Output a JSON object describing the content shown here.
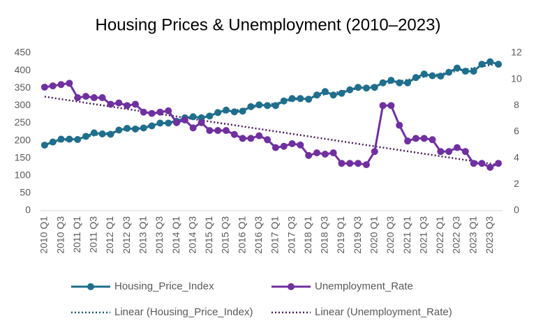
{
  "chart_data": {
    "type": "line",
    "title": "Housing Prices & Unemployment (2010–2023)",
    "categories": [
      "2010 Q1",
      null,
      "2010 Q3",
      null,
      "2011 Q1",
      null,
      "2011 Q3",
      null,
      "2012 Q1",
      null,
      "2012 Q3",
      null,
      "2013 Q1",
      null,
      "2013 Q3",
      null,
      "2014 Q1",
      null,
      "2014 Q3",
      null,
      "2015 Q1",
      null,
      "2015 Q3",
      null,
      "2016 Q1",
      null,
      "2016 Q3",
      null,
      "2017 Q1",
      null,
      "2017 Q3",
      null,
      "2018 Q1",
      null,
      "2018 Q3",
      null,
      "2019 Q1",
      null,
      "2019 Q3",
      null,
      "2020 Q1",
      null,
      "2020 Q3",
      null,
      "2021 Q1",
      null,
      "2021 Q3",
      null,
      "2022 Q1",
      null,
      "2022 Q3",
      null,
      "2023 Q1",
      null,
      "2023 Q3",
      null
    ],
    "series": [
      {
        "name": "Housing_Price_Index",
        "color": "#1f6e8c",
        "values": [
          187,
          196,
          204,
          204,
          203,
          212,
          222,
          219,
          218,
          230,
          235,
          233,
          236,
          242,
          250,
          250,
          255,
          265,
          268,
          265,
          270,
          280,
          287,
          282,
          284,
          297,
          302,
          300,
          300,
          313,
          320,
          320,
          318,
          330,
          340,
          330,
          335,
          345,
          352,
          350,
          352,
          365,
          372,
          365,
          365,
          380,
          390,
          385,
          384,
          395,
          407,
          398,
          398,
          418,
          425,
          418
        ]
      },
      {
        "name": "Unemployment_Rate",
        "color": "#7030a0",
        "axis": "y2",
        "values": [
          9.4,
          9.5,
          9.6,
          9.7,
          8.6,
          8.7,
          8.6,
          8.6,
          8.1,
          8.2,
          8.0,
          8.1,
          7.5,
          7.4,
          7.5,
          7.6,
          6.7,
          6.9,
          6.3,
          6.7,
          6.1,
          6.1,
          6.1,
          5.8,
          5.5,
          5.5,
          5.7,
          5.4,
          4.8,
          4.9,
          5.1,
          5.0,
          4.2,
          4.4,
          4.3,
          4.4,
          3.6,
          3.6,
          3.6,
          3.5,
          4.5,
          8.0,
          8.0,
          6.5,
          5.3,
          5.5,
          5.5,
          5.4,
          4.5,
          4.5,
          4.8,
          4.5,
          3.6,
          3.6,
          3.3,
          3.6
        ]
      }
    ],
    "trendlines": [
      {
        "name": "Linear (Housing_Price_Index)",
        "series": 0,
        "color": "#1a5a73"
      },
      {
        "name": "Linear (Unemployment_Rate)",
        "series": 1,
        "color": "#4b1a5e"
      }
    ],
    "ylim": [
      0,
      450
    ],
    "yticks": [
      0,
      50,
      100,
      150,
      200,
      250,
      300,
      350,
      400,
      450
    ],
    "y2lim": [
      0,
      12
    ],
    "y2ticks": [
      0,
      2,
      4,
      6,
      8,
      10,
      12
    ],
    "grid": false,
    "legend": "bottom"
  }
}
